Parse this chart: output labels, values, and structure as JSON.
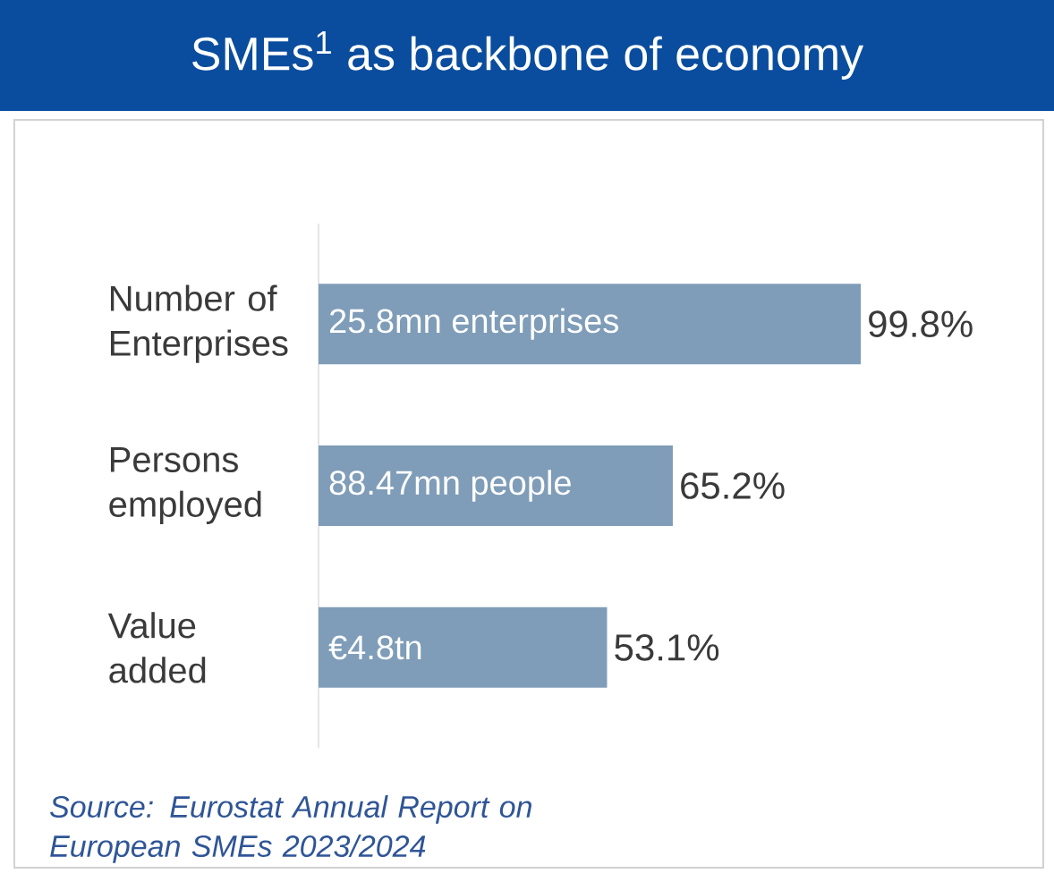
{
  "chart_data": {
    "type": "bar",
    "orientation": "horizontal",
    "title": "SMEs$^{1}$ as backbone of economy",
    "categories": [
      "Number of Enterprises",
      "Persons employed",
      "Value added"
    ],
    "values": [
      99.8,
      65.2,
      53.1
    ],
    "value_labels": [
      "99.8%",
      "65.2%",
      "53.1%"
    ],
    "color": "#7f9db8",
    "annotations": [
      "25.8mn enterprises",
      "88.47mn people",
      "€4.8tn",
      "Source: Eurostat Annual Report on European SMEs 2023/2024"
    ]
  }
}
